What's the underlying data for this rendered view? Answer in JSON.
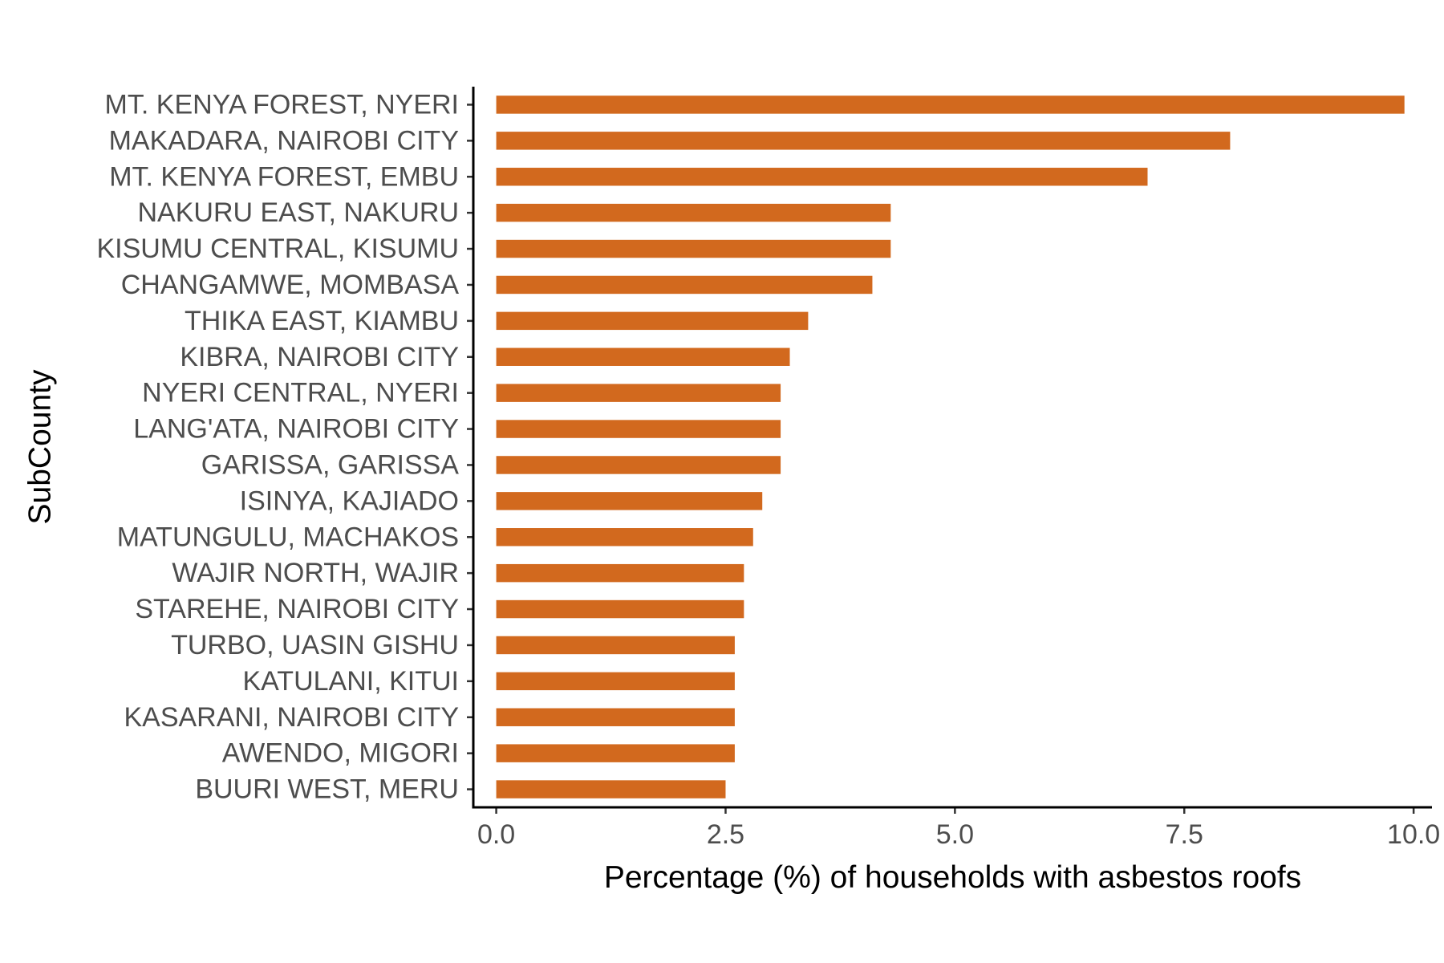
{
  "chart_data": {
    "type": "bar",
    "orientation": "horizontal",
    "title": "",
    "xlabel": "Percentage (%) of households with asbestos roofs",
    "ylabel": "SubCounty",
    "xlim": [
      -0.25,
      10.2
    ],
    "xticks": [
      0,
      2.5,
      5,
      7.5,
      10
    ],
    "xtick_labels": [
      "0.0",
      "2.5",
      "5.0",
      "7.5",
      "10.0"
    ],
    "grid": false,
    "legend": "none",
    "bar_color": "#D2691E",
    "categories": [
      "MT. KENYA FOREST, NYERI",
      "MAKADARA, NAIROBI CITY",
      "MT. KENYA FOREST, EMBU",
      "NAKURU EAST, NAKURU",
      "KISUMU CENTRAL, KISUMU",
      "CHANGAMWE, MOMBASA",
      "THIKA EAST, KIAMBU",
      "KIBRA, NAIROBI CITY",
      "NYERI CENTRAL, NYERI",
      "LANG'ATA, NAIROBI CITY",
      "GARISSA, GARISSA",
      "ISINYA, KAJIADO",
      "MATUNGULU, MACHAKOS",
      "WAJIR NORTH, WAJIR",
      "STAREHE, NAIROBI CITY",
      "TURBO, UASIN GISHU",
      "KATULANI, KITUI",
      "KASARANI, NAIROBI CITY",
      "AWENDO, MIGORI",
      "BUURI WEST, MERU"
    ],
    "values": [
      9.9,
      8.0,
      7.1,
      4.3,
      4.3,
      4.1,
      3.4,
      3.2,
      3.1,
      3.1,
      3.1,
      2.9,
      2.8,
      2.7,
      2.7,
      2.6,
      2.6,
      2.6,
      2.6,
      2.5
    ]
  }
}
